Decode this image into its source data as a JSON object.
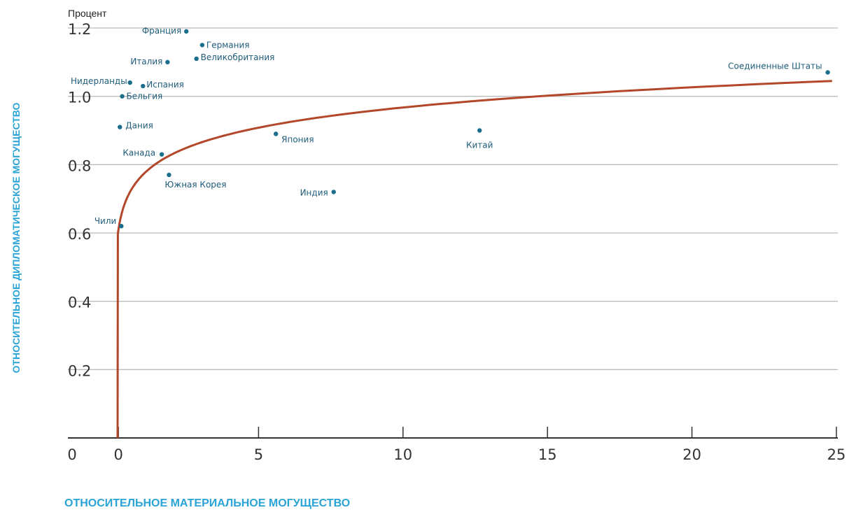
{
  "chart_data": {
    "type": "scatter",
    "ylabel_unit": "Процент",
    "ylabel": "ОТНОСИТЕЛЬНОЕ ДИПЛОМАТИЧЕСКОЕ МОГУЩЕСТВО",
    "xlabel": "ОТНОСИТЕЛЬНОЕ МАТЕРИАЛЬНОЕ МОГУЩЕСТВО",
    "xlim": [
      0,
      25
    ],
    "ylim": [
      0,
      1.2
    ],
    "x_tick_labels": [
      "0",
      "0",
      "5",
      "10",
      "15",
      "20",
      "25"
    ],
    "x_tick_values": [
      0,
      0.15,
      5,
      10,
      15,
      20,
      25
    ],
    "y_tick_labels": [
      "0.2",
      "0.4",
      "0.6",
      "0.8",
      "1.0",
      "1.2"
    ],
    "y_tick_values": [
      0.2,
      0.4,
      0.6,
      0.8,
      1.0,
      1.2
    ],
    "grid": "horizontal",
    "points": [
      {
        "label": "Франция",
        "x": 2.5,
        "y": 1.19
      },
      {
        "label": "Германия",
        "x": 3.05,
        "y": 1.15
      },
      {
        "label": "Великобритания",
        "x": 2.85,
        "y": 1.11
      },
      {
        "label": "Италия",
        "x": 1.85,
        "y": 1.1
      },
      {
        "label": "Нидерланды",
        "x": 0.55,
        "y": 1.04
      },
      {
        "label": "Испания",
        "x": 1.0,
        "y": 1.03
      },
      {
        "label": "Бельгия",
        "x": 0.28,
        "y": 1.0
      },
      {
        "label": "Дания",
        "x": 0.2,
        "y": 0.91
      },
      {
        "label": "Канада",
        "x": 1.65,
        "y": 0.83
      },
      {
        "label": "Южная Корея",
        "x": 1.9,
        "y": 0.77
      },
      {
        "label": "Чили",
        "x": 0.25,
        "y": 0.62
      },
      {
        "label": "Япония",
        "x": 5.6,
        "y": 0.89
      },
      {
        "label": "Индия",
        "x": 7.6,
        "y": 0.72
      },
      {
        "label": "Китай",
        "x": 12.65,
        "y": 0.9
      },
      {
        "label": "Соединенные Штаты",
        "x": 24.7,
        "y": 1.07
      }
    ],
    "trend": {
      "type": "line",
      "description_shape": "logarithmic fit"
    },
    "colors": {
      "points": "#1a6f8c",
      "labels": "#1f5c7a",
      "trend": "#b3472a",
      "axis_titles": "#2aa3d6",
      "grid": "#bbbbbb",
      "axis": "#333333"
    }
  }
}
